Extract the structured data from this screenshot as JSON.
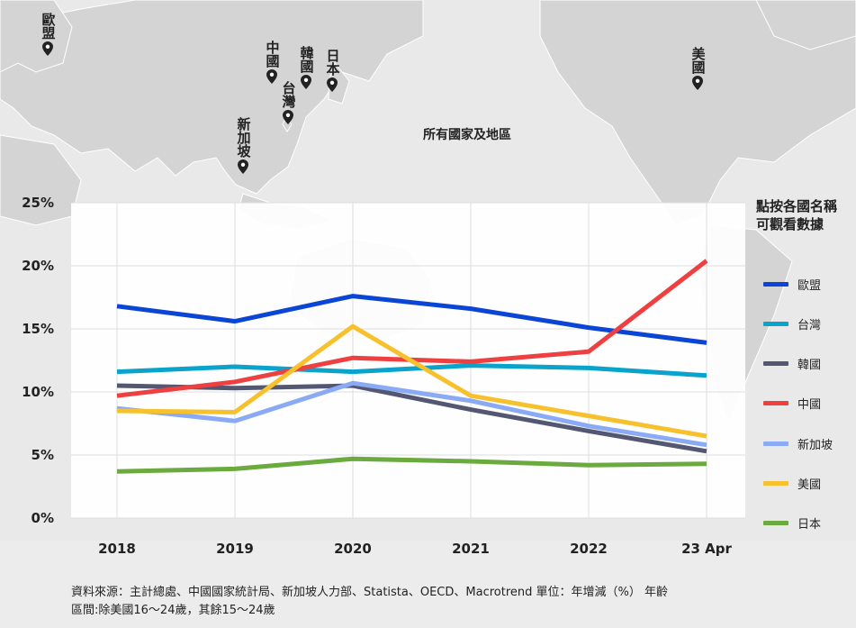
{
  "map": {
    "all_regions_label": "所有國家及地區",
    "pins": [
      {
        "key": "eu",
        "label": "歐盟"
      },
      {
        "key": "cn",
        "label": "中國"
      },
      {
        "key": "kr",
        "label": "韓國"
      },
      {
        "key": "jp",
        "label": "日本"
      },
      {
        "key": "tw",
        "label": "台灣"
      },
      {
        "key": "sg",
        "label": "新加坡"
      },
      {
        "key": "us",
        "label": "美國"
      }
    ]
  },
  "legend": {
    "title_line1": "點按各國名稱",
    "title_line2": "可觀看數據"
  },
  "chart_data": {
    "type": "line",
    "title": "",
    "xlabel": "",
    "ylabel": "",
    "categories": [
      "2018",
      "2019",
      "2020",
      "2021",
      "2022",
      "23 Apr"
    ],
    "yticks": [
      "0%",
      "5%",
      "10%",
      "15%",
      "20%",
      "25%"
    ],
    "ylim": [
      0,
      25
    ],
    "grid": true,
    "legend_position": "right",
    "series": [
      {
        "name": "歐盟",
        "color": "#0b45d6",
        "values": [
          16.8,
          15.6,
          17.6,
          16.6,
          15.1,
          13.9
        ]
      },
      {
        "name": "台灣",
        "color": "#0aa3cb",
        "values": [
          11.6,
          12.0,
          11.6,
          12.1,
          11.9,
          11.3
        ]
      },
      {
        "name": "韓國",
        "color": "#545772",
        "values": [
          10.5,
          10.3,
          10.5,
          8.6,
          6.9,
          5.3
        ]
      },
      {
        "name": "中國",
        "color": "#ee4040",
        "values": [
          9.7,
          10.8,
          12.7,
          12.4,
          13.2,
          20.4
        ]
      },
      {
        "name": "新加坡",
        "color": "#8aaaf5",
        "values": [
          8.7,
          7.7,
          10.7,
          9.3,
          7.3,
          5.8
        ]
      },
      {
        "name": "美國",
        "color": "#f7c12e",
        "values": [
          8.5,
          8.4,
          15.2,
          9.7,
          8.1,
          6.5
        ]
      },
      {
        "name": "日本",
        "color": "#6aaa3f",
        "values": [
          3.7,
          3.9,
          4.7,
          4.5,
          4.2,
          4.3
        ]
      }
    ]
  },
  "footnote": {
    "line1": "資料來源：主計總處、中國國家統計局、新加坡人力部、Statista、OECD、Macrotrend 單位：年增減（%） 年齡",
    "line2": "區間:除美國16～24歲，其餘15～24歲"
  }
}
